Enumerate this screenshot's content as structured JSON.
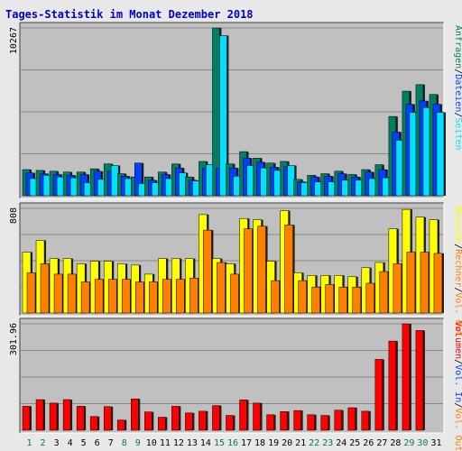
{
  "chart_data": {
    "type": "bar",
    "title": "Tages-Statistik im Monat Dezember 2018",
    "categories": [
      "1",
      "2",
      "3",
      "4",
      "5",
      "6",
      "7",
      "8",
      "9",
      "10",
      "11",
      "12",
      "13",
      "14",
      "15",
      "16",
      "17",
      "18",
      "19",
      "20",
      "21",
      "22",
      "23",
      "24",
      "25",
      "26",
      "27",
      "28",
      "29",
      "30",
      "31"
    ],
    "weekend_days": [
      "1",
      "2",
      "8",
      "9",
      "15",
      "16",
      "22",
      "23",
      "29",
      "30"
    ],
    "colors": {
      "title": "#0000cc",
      "background": "#c0c0c0",
      "page": "#e8e8e8",
      "weekday_label": "#000000",
      "weekend_label": "#008040",
      "anfragen": "#008060",
      "dateien": "#0040ff",
      "seiten": "#00e0ff",
      "besuche": "#ffff00",
      "rechner": "#ff8000",
      "volumen": "#ff0000",
      "vol_in": "#0040ff",
      "vol_out": "#ff8000"
    },
    "panels": [
      {
        "id": "top",
        "max_label": "10267",
        "ymax": 10267,
        "legend": [
          {
            "text": "Anfragen",
            "color": "#008060"
          },
          {
            "text": "/",
            "color": "#000000"
          },
          {
            "text": "Dateien",
            "color": "#0040ff"
          },
          {
            "text": "/",
            "color": "#000000"
          },
          {
            "text": "Seiten",
            "color": "#00e0ff"
          }
        ],
        "series": [
          {
            "name": "Anfragen",
            "color": "#008060",
            "values": [
              1600,
              1550,
              1500,
              1450,
              1450,
              1650,
              1950,
              1350,
              1150,
              1150,
              1450,
              1950,
              1150,
              2100,
              10267,
              1950,
              2700,
              2300,
              2000,
              2100,
              1000,
              1250,
              1350,
              1500,
              1300,
              1600,
              1900,
              4850,
              6400,
              6800,
              6200
            ]
          },
          {
            "name": "Dateien",
            "color": "#0040ff",
            "values": [
              1400,
              1350,
              1300,
              1250,
              1300,
              1500,
              1500,
              1200,
              2000,
              950,
              1300,
              1700,
              950,
              1700,
              1700,
              1700,
              2300,
              2050,
              1750,
              1800,
              850,
              1150,
              1200,
              1350,
              1150,
              1450,
              1600,
              3900,
              5600,
              5800,
              5600
            ]
          },
          {
            "name": "Seiten",
            "color": "#00e0ff",
            "values": [
              1050,
              1250,
              1150,
              1100,
              800,
              1000,
              1850,
              1050,
              750,
              800,
              1050,
              1400,
              900,
              1900,
              9800,
              1200,
              1850,
              1700,
              1550,
              1850,
              800,
              850,
              850,
              950,
              950,
              1050,
              1100,
              3400,
              5100,
              5400,
              5100
            ]
          }
        ]
      },
      {
        "id": "middle",
        "max_label": "808",
        "ymax": 808,
        "legend": [
          {
            "text": "Besuche",
            "color": "#ffff00"
          },
          {
            "text": "/",
            "color": "#000000"
          },
          {
            "text": "Rechner",
            "color": "#ff8000"
          },
          {
            "text": "/",
            "color": "#000000"
          },
          {
            "text": "Vol. Out",
            "color": "#ff8000"
          }
        ],
        "series": [
          {
            "name": "Besuche",
            "color": "#ffff00",
            "values": [
              470,
              560,
              420,
              420,
              380,
              400,
              400,
              380,
              370,
              300,
              420,
              420,
              420,
              760,
              420,
              380,
              730,
              720,
              400,
              790,
              310,
              290,
              290,
              290,
              280,
              350,
              390,
              650,
              800,
              740,
              720
            ]
          },
          {
            "name": "Rechner",
            "color": "#ff8000",
            "values": [
              310,
              380,
              300,
              300,
              240,
              260,
              260,
              260,
              240,
              240,
              260,
              260,
              270,
              640,
              390,
              300,
              650,
              670,
              250,
              680,
              250,
              200,
              220,
              200,
              200,
              230,
              320,
              380,
              470,
              470,
              460
            ]
          }
        ]
      },
      {
        "id": "bottom",
        "max_label": "301.96",
        "ymax": 301.96,
        "legend": [
          {
            "text": "Volumen",
            "color": "#ff0000"
          },
          {
            "text": "/",
            "color": "#000000"
          },
          {
            "text": "Vol. In",
            "color": "#0040ff"
          },
          {
            "text": "/",
            "color": "#000000"
          },
          {
            "text": "Vol. Out",
            "color": "#ff8000"
          }
        ],
        "series": [
          {
            "name": "Volumen",
            "color": "#ff0000",
            "values": [
              68,
              87,
              77,
              87,
              68,
              39,
              67,
              29,
              89,
              52,
              37,
              68,
              49,
              54,
              70,
              42,
              86,
              77,
              44,
              53,
              56,
              44,
              42,
              57,
              64,
              54,
              201,
              253,
              301.96,
              283,
              0
            ]
          }
        ]
      }
    ]
  }
}
